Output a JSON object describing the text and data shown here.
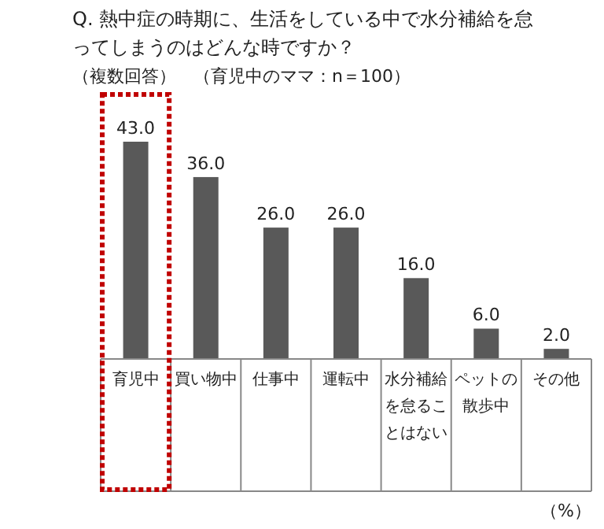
{
  "chart_data": {
    "type": "bar",
    "title": "Q. 熱中症の時期に、生活をしている中で水分補給を怠ってしまうのはどんな時ですか？",
    "subtitle": "（複数回答）　（育児中のママ：n＝100）",
    "categories": [
      "育児中",
      "買い物中",
      "仕事中",
      "運転中",
      "水分補給を怠ることはない",
      "ペットの散歩中",
      "その他"
    ],
    "values": [
      43.0,
      36.0,
      26.0,
      26.0,
      16.0,
      6.0,
      2.0
    ],
    "value_labels": [
      "43.0",
      "36.0",
      "26.0",
      "26.0",
      "16.0",
      "6.0",
      "2.0"
    ],
    "color": "#595959",
    "annotations": [
      "（%）"
    ]
  }
}
